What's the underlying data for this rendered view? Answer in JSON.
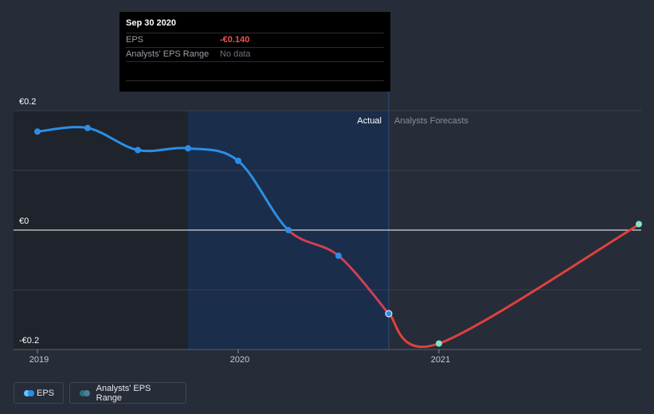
{
  "tooltip": {
    "date": "Sep 30 2020",
    "rows": [
      {
        "label": "EPS",
        "value": "-€0.140"
      },
      {
        "label": "Analysts' EPS Range",
        "value": "No data"
      }
    ]
  },
  "legend": {
    "eps_label": "EPS",
    "range_label": "Analysts' EPS Range"
  },
  "colors": {
    "background": "#262c38",
    "past_band": "#1f232b",
    "highlight_band": "#1a2d4a",
    "eps_line": "#2b8ee6",
    "forecast_line": "#e0413f",
    "zero_line": "#ffffff",
    "grid": "#3a404d",
    "estimate_marker": "#7fe6c4"
  },
  "chart_data": {
    "type": "line",
    "title": "",
    "xlabel": "",
    "ylabel": "",
    "ylim": [
      -0.2,
      0.2
    ],
    "y_ticks": [
      {
        "value": 0.2,
        "label": "€0.2"
      },
      {
        "value": 0.0,
        "label": "€0"
      },
      {
        "value": -0.2,
        "label": "-€0.2"
      }
    ],
    "x_ticks": [
      {
        "value": 2019.0,
        "label": "2019"
      },
      {
        "value": 2020.0,
        "label": "2020"
      },
      {
        "value": 2021.0,
        "label": "2021"
      }
    ],
    "xlim": [
      2018.875,
      2022.0
    ],
    "region_labels": {
      "actual": "Actual",
      "forecast": "Analysts Forecasts"
    },
    "past_region_end": 2019.75,
    "actual_end": 2020.75,
    "series": [
      {
        "name": "EPS",
        "kind": "actual",
        "x": [
          2019.0,
          2019.25,
          2019.5,
          2019.75,
          2020.0,
          2020.25,
          2020.5,
          2020.75
        ],
        "values": [
          0.165,
          0.171,
          0.134,
          0.137,
          0.116,
          0.0,
          -0.043,
          -0.14
        ]
      },
      {
        "name": "EPS Forecast",
        "kind": "forecast",
        "x": [
          2020.75,
          2021.0,
          2022.0
        ],
        "values": [
          -0.14,
          -0.19,
          0.01
        ]
      }
    ]
  }
}
